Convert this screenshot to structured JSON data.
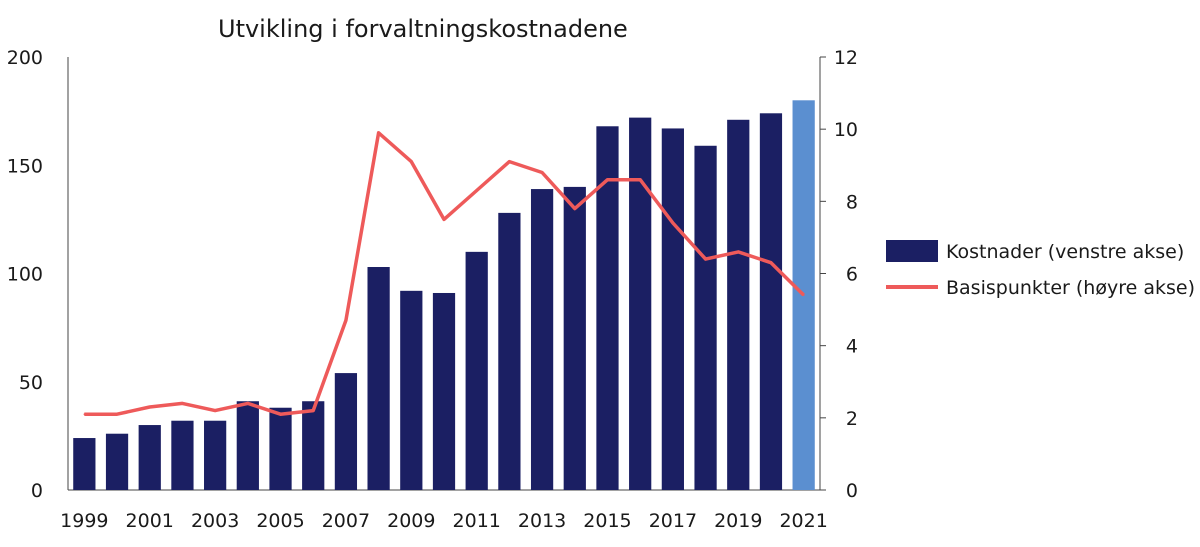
{
  "chart_data": {
    "type": "bar",
    "title": "Utvikling i forvaltningskostnadene",
    "categories": [
      "1999",
      "2000",
      "2001",
      "2002",
      "2003",
      "2004",
      "2005",
      "2006",
      "2007",
      "2008",
      "2009",
      "2010",
      "2011",
      "2012",
      "2013",
      "2014",
      "2015",
      "2016",
      "2017",
      "2018",
      "2019",
      "2020",
      "2021"
    ],
    "x_tick_labels": [
      "1999",
      "2001",
      "2003",
      "2005",
      "2007",
      "2009",
      "2011",
      "2013",
      "2015",
      "2017",
      "2019",
      "2021"
    ],
    "series": [
      {
        "name": "Kostnader (venstre akse)",
        "type": "bar",
        "axis": "left",
        "color": "#1b1f63",
        "highlight_color": "#5b8fd0",
        "highlight_category": "2021",
        "values": [
          24,
          26,
          30,
          32,
          32,
          41,
          38,
          41,
          54,
          103,
          92,
          91,
          110,
          128,
          139,
          140,
          168,
          172,
          167,
          159,
          171,
          174,
          180
        ]
      },
      {
        "name": "Basispunkter (høyre akse)",
        "type": "line",
        "axis": "right",
        "color": "#ee5a5a",
        "values": [
          2.1,
          2.1,
          2.3,
          2.4,
          2.2,
          2.4,
          2.1,
          2.2,
          4.7,
          9.9,
          9.1,
          7.5,
          8.3,
          9.1,
          8.8,
          7.8,
          8.6,
          8.6,
          7.4,
          6.4,
          6.6,
          6.3,
          5.4
        ]
      }
    ],
    "y_left": {
      "min": 0,
      "max": 200,
      "ticks": [
        0,
        50,
        100,
        150,
        200
      ]
    },
    "y_right": {
      "min": 0,
      "max": 12,
      "ticks": [
        0,
        2,
        4,
        6,
        8,
        10,
        12
      ]
    },
    "grid": false,
    "legend_position": "right"
  }
}
